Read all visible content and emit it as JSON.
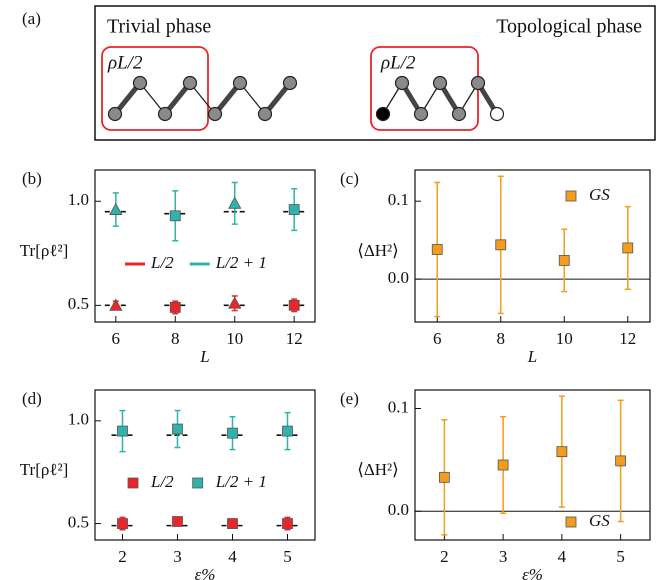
{
  "diagram": {
    "panel": "(a)",
    "left_title": "Trivial phase",
    "right_title": "Topological phase",
    "left_box_label": "ρL/2",
    "right_box_label": "ρL/2"
  },
  "chart_data": [
    {
      "type": "scatter",
      "panel": "(b)",
      "xlabel": "L",
      "ylabel": "Tr[ρℓ²]",
      "x": [
        6,
        8,
        10,
        12
      ],
      "xlim": [
        5.3,
        12.7
      ],
      "xticks": [
        6,
        8,
        10,
        12
      ],
      "ylim": [
        0.42,
        1.15
      ],
      "yticks": [
        0.5,
        {
          "value": 1,
          "label": "1.0"
        }
      ],
      "legend": "center",
      "legend_style": "line",
      "series": [
        {
          "name": "L/2",
          "color": "#e8262b",
          "values": [
            0.5,
            0.49,
            0.51,
            0.5
          ],
          "errors": [
            0.02,
            0.03,
            0.035,
            0.03
          ],
          "reference": [
            0.5,
            0.5,
            0.5,
            0.5
          ],
          "markers": [
            "triangle",
            "square",
            "triangle",
            "square"
          ]
        },
        {
          "name": "L/2 + 1",
          "color": "#2fb3aa",
          "values": [
            0.96,
            0.93,
            0.99,
            0.96
          ],
          "errors": [
            0.08,
            0.12,
            0.1,
            0.1
          ],
          "reference": [
            0.95,
            0.94,
            0.95,
            0.95
          ],
          "markers": [
            "triangle",
            "square",
            "triangle",
            "square"
          ]
        }
      ]
    },
    {
      "type": "scatter",
      "panel": "(c)",
      "xlabel": "L",
      "ylabel": "⟨ΔH²⟩",
      "x": [
        6,
        8,
        10,
        12
      ],
      "xlim": [
        5.3,
        12.7
      ],
      "xticks": [
        6,
        8,
        10,
        12
      ],
      "ylim": [
        -0.055,
        0.14
      ],
      "yticks": [
        {
          "value": 0,
          "label": "0.0"
        },
        0.1
      ],
      "legend": "upper right",
      "legend_style": "marker",
      "zero_line": true,
      "series": [
        {
          "name": "GS",
          "color": "#f39c1f",
          "values": [
            0.038,
            0.044,
            0.024,
            0.04
          ],
          "errors": [
            0.086,
            0.088,
            0.04,
            0.053
          ],
          "markers": [
            "square",
            "square",
            "square",
            "square"
          ]
        }
      ]
    },
    {
      "type": "scatter",
      "panel": "(d)",
      "xlabel": "ε%",
      "ylabel": "Tr[ρℓ²]",
      "x": [
        2,
        3,
        4,
        5
      ],
      "xlim": [
        1.5,
        5.5
      ],
      "xticks": [
        2,
        3,
        4,
        5
      ],
      "ylim": [
        0.42,
        1.15
      ],
      "yticks": [
        0.5,
        {
          "value": 1,
          "label": "1.0"
        }
      ],
      "legend": "center",
      "legend_style": "marker",
      "series": [
        {
          "name": "L/2",
          "color": "#e8262b",
          "values": [
            0.5,
            0.51,
            0.5,
            0.5
          ],
          "errors": [
            0.03,
            0.02,
            0.02,
            0.03
          ],
          "reference": [
            0.49,
            0.49,
            0.49,
            0.49
          ],
          "markers": [
            "square",
            "square",
            "square",
            "square"
          ]
        },
        {
          "name": "L/2 + 1",
          "color": "#2fb3aa",
          "values": [
            0.95,
            0.96,
            0.94,
            0.95
          ],
          "errors": [
            0.1,
            0.09,
            0.08,
            0.09
          ],
          "reference": [
            0.93,
            0.93,
            0.93,
            0.93
          ],
          "markers": [
            "square",
            "square",
            "square",
            "square"
          ]
        }
      ]
    },
    {
      "type": "scatter",
      "panel": "(e)",
      "xlabel": "ε%",
      "ylabel": "⟨ΔH²⟩",
      "x": [
        2,
        3,
        4,
        5
      ],
      "xlim": [
        1.5,
        5.5
      ],
      "xticks": [
        2,
        3,
        4,
        5
      ],
      "ylim": [
        -0.028,
        0.118
      ],
      "yticks": [
        {
          "value": 0,
          "label": "0.0"
        },
        0.1
      ],
      "legend": "lower right",
      "legend_style": "marker",
      "zero_line": true,
      "series": [
        {
          "name": "GS",
          "color": "#f39c1f",
          "values": [
            0.033,
            0.045,
            0.058,
            0.049
          ],
          "errors": [
            0.056,
            0.047,
            0.054,
            0.059
          ],
          "markers": [
            "square",
            "square",
            "square",
            "square"
          ]
        }
      ]
    }
  ]
}
